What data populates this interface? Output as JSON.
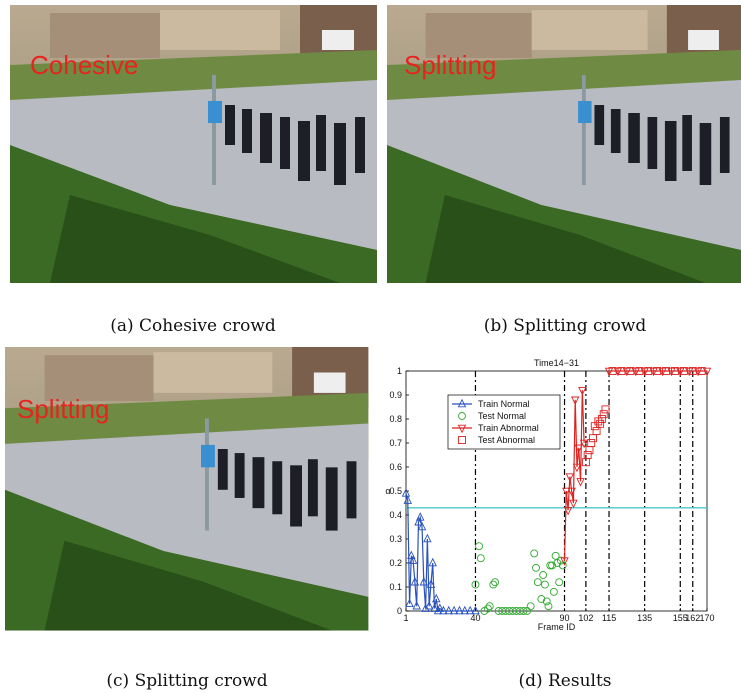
{
  "panels": [
    {
      "overlay": "Cohesive",
      "caption": "(a)  Cohesive crowd"
    },
    {
      "overlay": "Splitting",
      "caption": "(b)  Splitting crowd"
    },
    {
      "overlay": "Splitting",
      "caption": "(c)  Splitting crowd"
    },
    {
      "caption": "(d)  Results"
    }
  ],
  "chart_data": {
    "type": "scatter",
    "title": "Time14−31",
    "x_label": "Frame ID",
    "y_label": "α",
    "xlim": [
      1,
      170
    ],
    "ylim": [
      0,
      1
    ],
    "xticks": [
      1,
      40,
      90,
      102,
      115,
      135,
      155,
      162,
      170
    ],
    "yticks": [
      0,
      0.1,
      0.2,
      0.3,
      0.4,
      0.5,
      0.6,
      0.7,
      0.8,
      0.9,
      1
    ],
    "vlines": [
      40,
      90,
      102,
      115,
      135,
      155,
      162
    ],
    "hline": 0.43,
    "hline_color": "#4fc6c8",
    "legend": "upper left",
    "series": [
      {
        "name": "Train Normal",
        "color": "#2a52be",
        "marker": "triangle-up",
        "line": true,
        "x": [
          1,
          2,
          3,
          4,
          5,
          6,
          7,
          8,
          9,
          10,
          11,
          12,
          13,
          14,
          15,
          16,
          17,
          18,
          19,
          20,
          22,
          25,
          28,
          31,
          34,
          37,
          40
        ],
        "values": [
          0.49,
          0.46,
          0.03,
          0.23,
          0.21,
          0.12,
          0.02,
          0.37,
          0.39,
          0.35,
          0.12,
          0.01,
          0.3,
          0.02,
          0.11,
          0.2,
          0.01,
          0.05,
          0,
          0.01,
          0,
          0,
          0,
          0,
          0,
          0,
          0
        ]
      },
      {
        "name": "Test Normal",
        "color": "#33aa33",
        "marker": "circle",
        "line": false,
        "x": [
          40,
          42,
          43,
          45,
          47,
          48,
          50,
          51,
          53,
          55,
          57,
          59,
          61,
          63,
          65,
          67,
          69,
          71,
          73,
          74,
          75,
          77,
          78,
          79,
          80,
          81,
          82,
          83,
          84,
          85,
          86,
          87,
          88,
          89
        ],
        "values": [
          0.11,
          0.27,
          0.22,
          0,
          0.01,
          0.02,
          0.11,
          0.12,
          0,
          0,
          0,
          0,
          0,
          0,
          0,
          0,
          0,
          0.02,
          0.24,
          0.18,
          0.12,
          0.05,
          0.15,
          0.11,
          0.04,
          0.02,
          0.19,
          0.19,
          0.08,
          0.23,
          0.2,
          0.12,
          0.21,
          0.19
        ]
      },
      {
        "name": "Train Abnormal",
        "color": "#dd2222",
        "marker": "triangle-down",
        "line": true,
        "x": [
          90,
          91,
          92,
          93,
          94,
          95,
          96,
          97,
          98,
          99,
          100,
          101,
          108,
          115,
          120,
          125,
          130,
          135,
          140,
          145,
          150,
          155,
          160,
          165,
          170
        ],
        "values": [
          0.21,
          0.5,
          0.42,
          0.56,
          0.5,
          0.45,
          0.88,
          0.6,
          0.68,
          0.54,
          0.92,
          0.7,
          null,
          1,
          1,
          1,
          1,
          1,
          1,
          1,
          1,
          1,
          1,
          1,
          1
        ]
      },
      {
        "name": "Test Abnormal",
        "color": "#dd2222",
        "marker": "square",
        "line": false,
        "x": [
          102,
          103,
          104,
          105,
          106,
          107,
          108,
          109,
          110,
          111,
          112,
          113,
          117,
          122,
          127,
          132,
          137,
          142,
          147,
          152,
          157,
          162,
          167
        ],
        "values": [
          0.62,
          0.65,
          0.67,
          0.7,
          0.72,
          0.77,
          0.75,
          0.79,
          0.78,
          0.8,
          0.82,
          0.84,
          1,
          1,
          1,
          1,
          1,
          1,
          1,
          1,
          1,
          1,
          1
        ]
      }
    ]
  }
}
